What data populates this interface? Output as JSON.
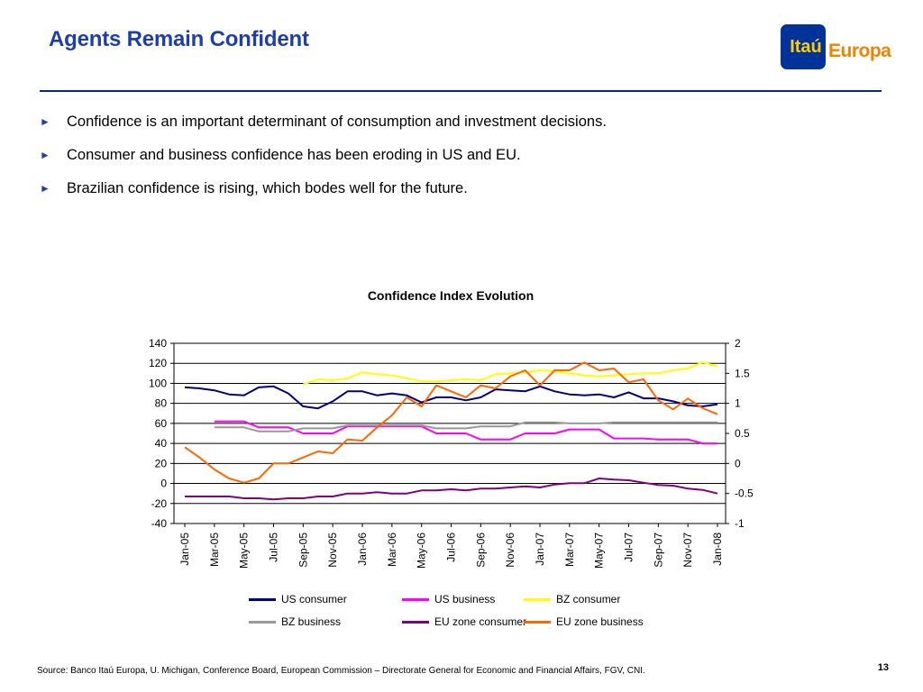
{
  "slide": {
    "title": "Agents Remain Confident",
    "page_number": "13",
    "source": "Source: Banco Itaú Europa, U. Michigan, Conference Board, European Commission – Directorate General for Economic and Financial Affairs, FGV, CNI."
  },
  "logo": {
    "brand": "Itaú",
    "sub": "Europa"
  },
  "bullets": [
    "Confidence is an important determinant of consumption and investment decisions.",
    "Consumer and business confidence has been eroding in US and EU.",
    "Brazilian confidence is rising, which bodes well for the future."
  ],
  "colors": {
    "title": "#1f3fa8",
    "rule": "#002a85"
  },
  "chart_data": {
    "type": "line",
    "title": "Confidence Index Evolution",
    "x": [
      "Jan-05",
      "Feb-05",
      "Mar-05",
      "Apr-05",
      "May-05",
      "Jun-05",
      "Jul-05",
      "Aug-05",
      "Sep-05",
      "Oct-05",
      "Nov-05",
      "Dec-05",
      "Jan-06",
      "Feb-06",
      "Mar-06",
      "Apr-06",
      "May-06",
      "Jun-06",
      "Jul-06",
      "Aug-06",
      "Sep-06",
      "Oct-06",
      "Nov-06",
      "Dec-06",
      "Jan-07",
      "Feb-07",
      "Mar-07",
      "Apr-07",
      "May-07",
      "Jun-07",
      "Jul-07",
      "Aug-07",
      "Sep-07",
      "Oct-07",
      "Nov-07",
      "Dec-07",
      "Jan-08"
    ],
    "x_tick_labels": [
      "Jan-05",
      "Mar-05",
      "May-05",
      "Jul-05",
      "Sep-05",
      "Nov-05",
      "Jan-06",
      "Mar-06",
      "May-06",
      "Jul-06",
      "Sep-06",
      "Nov-06",
      "Jan-07",
      "Mar-07",
      "May-07",
      "Jul-07",
      "Sep-07",
      "Nov-07",
      "Jan-08"
    ],
    "y_left": {
      "lim": [
        -40,
        140
      ],
      "ticks": [
        "140",
        "120",
        "100",
        "80",
        "60",
        "40",
        "20",
        "0",
        "-20",
        "-40"
      ]
    },
    "y_right": {
      "lim": [
        -1,
        2
      ],
      "ticks": [
        "2",
        "1.5",
        "1",
        "0.5",
        "0",
        "-0.5",
        "-1"
      ]
    },
    "grid": "horizontal",
    "legend_position": "bottom",
    "series": [
      {
        "name": "US consumer",
        "color": "#000080",
        "axis": "left",
        "values": [
          96,
          95,
          93,
          89,
          88,
          96,
          97,
          90,
          77,
          75,
          82,
          92,
          92,
          88,
          90,
          88,
          81,
          86,
          86,
          83,
          86,
          94,
          93,
          92,
          97,
          92,
          89,
          88,
          89,
          86,
          91,
          85,
          85,
          82,
          78,
          77,
          79
        ]
      },
      {
        "name": "US business",
        "color": "#ff00ff",
        "axis": "left",
        "values": [
          null,
          null,
          62,
          62,
          62,
          56,
          56,
          56,
          50,
          50,
          50,
          57,
          57,
          57,
          57,
          57,
          57,
          50,
          50,
          50,
          44,
          44,
          44,
          50,
          50,
          50,
          54,
          54,
          54,
          45,
          45,
          45,
          44,
          44,
          44,
          40,
          40
        ]
      },
      {
        "name": "BZ consumer",
        "color": "#ffff00",
        "axis": "left",
        "values": [
          null,
          null,
          null,
          null,
          null,
          null,
          null,
          null,
          99,
          104,
          103,
          105,
          111,
          109,
          108,
          105,
          102,
          102,
          103,
          104,
          103,
          109,
          110,
          111,
          113,
          112,
          110,
          108,
          107,
          108,
          109,
          110,
          110,
          113,
          115,
          121,
          117
        ]
      },
      {
        "name": "BZ business",
        "color": "#999999",
        "axis": "left",
        "values": [
          null,
          null,
          56,
          56,
          56,
          52,
          52,
          52,
          55,
          55,
          55,
          58,
          58,
          58,
          58,
          58,
          58,
          55,
          55,
          55,
          57,
          57,
          57,
          61,
          61,
          61,
          60,
          60,
          60,
          61,
          61,
          61,
          61,
          61,
          61,
          61,
          61
        ]
      },
      {
        "name": "EU zone consumer",
        "color": "#800080",
        "axis": "right",
        "values": [
          -0.55,
          -0.55,
          -0.55,
          -0.55,
          -0.58,
          -0.58,
          -0.6,
          -0.58,
          -0.58,
          -0.55,
          -0.55,
          -0.5,
          -0.5,
          -0.48,
          -0.5,
          -0.5,
          -0.45,
          -0.45,
          -0.43,
          -0.45,
          -0.42,
          -0.42,
          -0.4,
          -0.38,
          -0.4,
          -0.35,
          -0.33,
          -0.33,
          -0.25,
          -0.27,
          -0.28,
          -0.32,
          -0.36,
          -0.37,
          -0.42,
          -0.44,
          -0.5
        ]
      },
      {
        "name": "EU zone business",
        "color": "#ff6600",
        "axis": "right",
        "values": [
          0.27,
          0.1,
          -0.1,
          -0.25,
          -0.32,
          -0.25,
          0.0,
          0.0,
          0.1,
          0.2,
          0.17,
          0.4,
          0.38,
          0.6,
          0.8,
          1.1,
          0.95,
          1.3,
          1.2,
          1.1,
          1.3,
          1.25,
          1.45,
          1.55,
          1.3,
          1.55,
          1.55,
          1.68,
          1.55,
          1.58,
          1.35,
          1.4,
          1.05,
          0.9,
          1.08,
          0.92,
          0.82
        ]
      }
    ]
  }
}
